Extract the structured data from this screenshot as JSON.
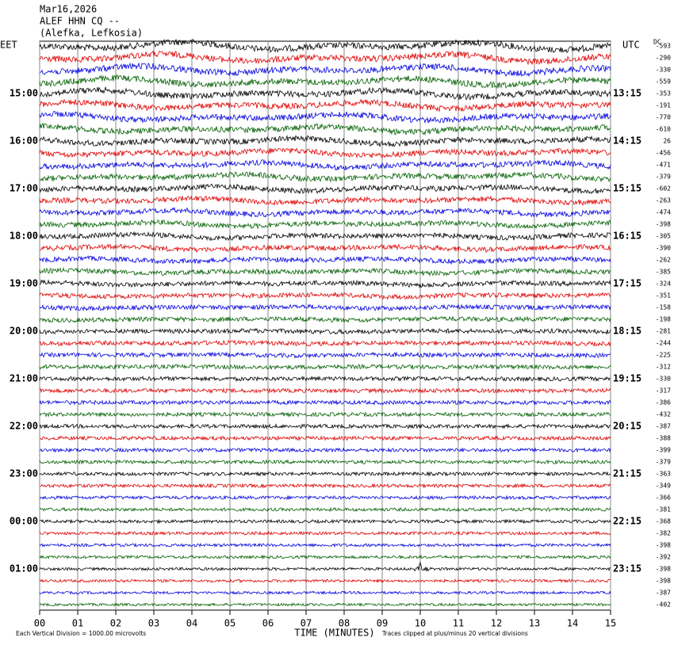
{
  "header": {
    "date": "Mar16,2026",
    "station": "ALEF HHN CQ --",
    "location": "(Alefka, Lefkosia)"
  },
  "left_zone": "EET",
  "right_zone": "UTC",
  "offset_header": "DC",
  "left_times": [
    "15:00",
    "16:00",
    "17:00",
    "18:00",
    "19:00",
    "20:00",
    "21:00",
    "22:00",
    "23:00",
    "00:00",
    "01:00"
  ],
  "right_times": [
    "13:15",
    "14:15",
    "15:15",
    "16:15",
    "17:15",
    "18:15",
    "19:15",
    "20:15",
    "21:15",
    "22:15",
    "23:15"
  ],
  "offsets": [
    "-593",
    "-290",
    "-330",
    "-559",
    "-353",
    "-191",
    "-770",
    "-610",
    "26",
    "-456",
    "-471",
    "-379",
    "-602",
    "-263",
    "-474",
    "-398",
    "-305",
    "-390",
    "-262",
    "-385",
    "-324",
    "-351",
    "-158",
    "-198",
    "-281",
    "-244",
    "-225",
    "-312",
    "-330",
    "-317",
    "-386",
    "-432",
    "-387",
    "-388",
    "-399",
    "-379",
    "-363",
    "-349",
    "-366",
    "-381",
    "-368",
    "-382",
    "-398",
    "-392",
    "-398",
    "-398",
    "-387",
    "-402"
  ],
  "x_ticks": [
    "00",
    "01",
    "02",
    "03",
    "04",
    "05",
    "06",
    "07",
    "08",
    "09",
    "10",
    "11",
    "12",
    "13",
    "14",
    "15"
  ],
  "footer": {
    "scale": "Each Vertical Division = 1000.00 microvolts",
    "axis_title": "TIME (MINUTES)",
    "clip_note": "Traces clipped at plus/minus 20 vertical divisions"
  }
}
